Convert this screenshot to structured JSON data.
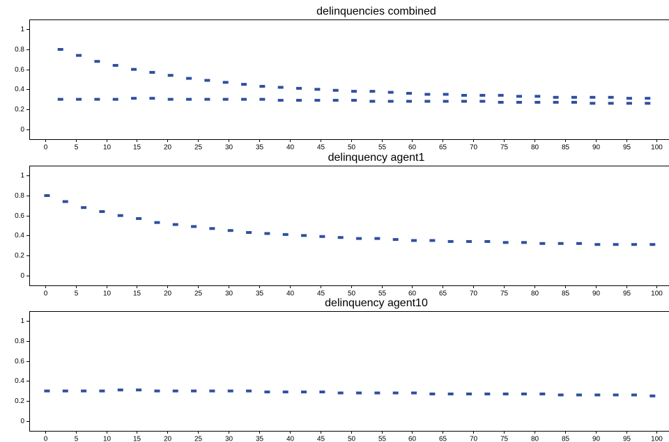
{
  "chart_data": [
    {
      "type": "scatter",
      "title": "delinquencies combined",
      "xlim": [
        -2.6,
        102
      ],
      "xticks": [
        0,
        5,
        10,
        15,
        20,
        25,
        30,
        35,
        40,
        45,
        50,
        55,
        60,
        65,
        70,
        75,
        80,
        85,
        90,
        95,
        100
      ],
      "ylim": [
        -0.1,
        1.1
      ],
      "yticks": [
        0,
        0.2,
        0.4,
        0.6,
        0.8,
        1
      ],
      "x": [
        2.5,
        5.5,
        8.5,
        11.5,
        14.5,
        17.5,
        20.5,
        23.5,
        26.5,
        29.5,
        32.5,
        35.5,
        38.5,
        41.5,
        44.5,
        47.5,
        50.5,
        53.5,
        56.5,
        59.5,
        62.5,
        65.5,
        68.5,
        71.5,
        74.5,
        77.5,
        80.5,
        83.5,
        86.5,
        89.5,
        92.5,
        95.5,
        98.5
      ],
      "series": [
        {
          "color": "#2f4f9f",
          "values": [
            0.8,
            0.74,
            0.68,
            0.64,
            0.6,
            0.57,
            0.54,
            0.51,
            0.49,
            0.47,
            0.45,
            0.43,
            0.42,
            0.41,
            0.4,
            0.39,
            0.38,
            0.38,
            0.37,
            0.36,
            0.35,
            0.35,
            0.34,
            0.34,
            0.34,
            0.33,
            0.33,
            0.32,
            0.32,
            0.32,
            0.32,
            0.31,
            0.31
          ]
        },
        {
          "color": "#2f4f9f",
          "values": [
            0.3,
            0.3,
            0.3,
            0.3,
            0.31,
            0.31,
            0.3,
            0.3,
            0.3,
            0.3,
            0.3,
            0.3,
            0.29,
            0.29,
            0.29,
            0.29,
            0.29,
            0.28,
            0.28,
            0.28,
            0.28,
            0.28,
            0.28,
            0.28,
            0.27,
            0.27,
            0.27,
            0.27,
            0.27,
            0.26,
            0.26,
            0.26,
            0.26
          ]
        }
      ]
    },
    {
      "type": "scatter",
      "title": "delinquency agent1",
      "xlim": [
        -2.6,
        102
      ],
      "xticks": [
        0,
        5,
        10,
        15,
        20,
        25,
        30,
        35,
        40,
        45,
        50,
        55,
        60,
        65,
        70,
        75,
        80,
        85,
        90,
        95,
        100
      ],
      "ylim": [
        -0.1,
        1.1
      ],
      "yticks": [
        0,
        0.2,
        0.4,
        0.6,
        0.8,
        1
      ],
      "x": [
        0.3,
        3.3,
        6.3,
        9.3,
        12.3,
        15.3,
        18.3,
        21.3,
        24.3,
        27.3,
        30.3,
        33.3,
        36.3,
        39.3,
        42.3,
        45.3,
        48.3,
        51.3,
        54.3,
        57.3,
        60.3,
        63.3,
        66.3,
        69.3,
        72.3,
        75.3,
        78.3,
        81.3,
        84.3,
        87.3,
        90.3,
        93.3,
        96.3,
        99.3
      ],
      "series": [
        {
          "color": "#2f4f9f",
          "values": [
            0.8,
            0.74,
            0.68,
            0.64,
            0.6,
            0.57,
            0.53,
            0.51,
            0.49,
            0.47,
            0.45,
            0.43,
            0.42,
            0.41,
            0.4,
            0.39,
            0.38,
            0.37,
            0.37,
            0.36,
            0.35,
            0.35,
            0.34,
            0.34,
            0.34,
            0.33,
            0.33,
            0.32,
            0.32,
            0.32,
            0.31,
            0.31,
            0.31,
            0.31
          ]
        }
      ]
    },
    {
      "type": "scatter",
      "title": "delinquency agent10",
      "xlim": [
        -2.6,
        102
      ],
      "xticks": [
        0,
        5,
        10,
        15,
        20,
        25,
        30,
        35,
        40,
        45,
        50,
        55,
        60,
        65,
        70,
        75,
        80,
        85,
        90,
        95,
        100
      ],
      "ylim": [
        -0.1,
        1.1
      ],
      "yticks": [
        0,
        0.2,
        0.4,
        0.6,
        0.8,
        1
      ],
      "x": [
        0.3,
        3.3,
        6.3,
        9.3,
        12.3,
        15.3,
        18.3,
        21.3,
        24.3,
        27.3,
        30.3,
        33.3,
        36.3,
        39.3,
        42.3,
        45.3,
        48.3,
        51.3,
        54.3,
        57.3,
        60.3,
        63.3,
        66.3,
        69.3,
        72.3,
        75.3,
        78.3,
        81.3,
        84.3,
        87.3,
        90.3,
        93.3,
        96.3,
        99.3
      ],
      "series": [
        {
          "color": "#2f4f9f",
          "values": [
            0.3,
            0.3,
            0.3,
            0.3,
            0.31,
            0.31,
            0.3,
            0.3,
            0.3,
            0.3,
            0.3,
            0.3,
            0.29,
            0.29,
            0.29,
            0.29,
            0.28,
            0.28,
            0.28,
            0.28,
            0.28,
            0.27,
            0.27,
            0.27,
            0.27,
            0.27,
            0.27,
            0.27,
            0.26,
            0.26,
            0.26,
            0.26,
            0.26,
            0.25
          ]
        }
      ]
    }
  ]
}
